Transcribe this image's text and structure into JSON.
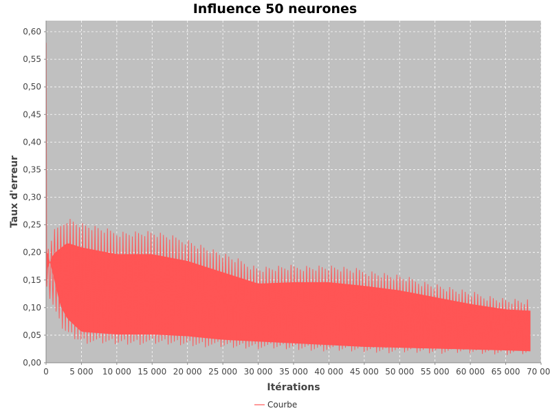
{
  "chart_data": {
    "type": "line",
    "title": "Influence 50 neurones",
    "xlabel": "Itérations",
    "ylabel": "Taux d'erreur",
    "xlim": [
      0,
      70000
    ],
    "ylim": [
      0,
      0.62
    ],
    "x_ticks": [
      0,
      5000,
      10000,
      15000,
      20000,
      25000,
      30000,
      35000,
      40000,
      45000,
      50000,
      55000,
      60000,
      65000,
      70000
    ],
    "x_tick_labels": [
      "0",
      "5 000",
      "10 000",
      "15 000",
      "20 000",
      "25 000",
      "30 000",
      "35 000",
      "40 000",
      "45 000",
      "50 000",
      "55 000",
      "60 000",
      "65 000",
      "70 000"
    ],
    "y_ticks": [
      0,
      0.05,
      0.1,
      0.15,
      0.2,
      0.25,
      0.3,
      0.35,
      0.4,
      0.45,
      0.5,
      0.55,
      0.6
    ],
    "y_tick_labels": [
      "0,00",
      "0,05",
      "0,10",
      "0,15",
      "0,20",
      "0,25",
      "0,30",
      "0,35",
      "0,40",
      "0,45",
      "0,50",
      "0,55",
      "0,60"
    ],
    "grid": true,
    "legend_position": "bottom-center",
    "plot_background": "#c0c0c0",
    "series": [
      {
        "name": "Courbe",
        "color": "#ff5555",
        "x_max": 68500,
        "initial_peak": 0.58,
        "upper_envelope": [
          [
            0,
            0.2
          ],
          [
            1000,
            0.24
          ],
          [
            3000,
            0.265
          ],
          [
            5000,
            0.255
          ],
          [
            10000,
            0.24
          ],
          [
            15000,
            0.24
          ],
          [
            20000,
            0.225
          ],
          [
            25000,
            0.2
          ],
          [
            28000,
            0.185
          ],
          [
            30000,
            0.175
          ],
          [
            35000,
            0.178
          ],
          [
            40000,
            0.178
          ],
          [
            45000,
            0.17
          ],
          [
            50000,
            0.16
          ],
          [
            55000,
            0.145
          ],
          [
            60000,
            0.13
          ],
          [
            65000,
            0.118
          ],
          [
            68500,
            0.115
          ]
        ],
        "lower_envelope": [
          [
            0,
            0.13
          ],
          [
            1000,
            0.1
          ],
          [
            2000,
            0.065
          ],
          [
            3000,
            0.05
          ],
          [
            5000,
            0.035
          ],
          [
            10000,
            0.032
          ],
          [
            15000,
            0.032
          ],
          [
            20000,
            0.03
          ],
          [
            25000,
            0.026
          ],
          [
            30000,
            0.024
          ],
          [
            35000,
            0.022
          ],
          [
            40000,
            0.02
          ],
          [
            45000,
            0.018
          ],
          [
            50000,
            0.017
          ],
          [
            55000,
            0.016
          ],
          [
            60000,
            0.015
          ],
          [
            65000,
            0.014
          ],
          [
            68500,
            0.013
          ]
        ]
      }
    ]
  }
}
